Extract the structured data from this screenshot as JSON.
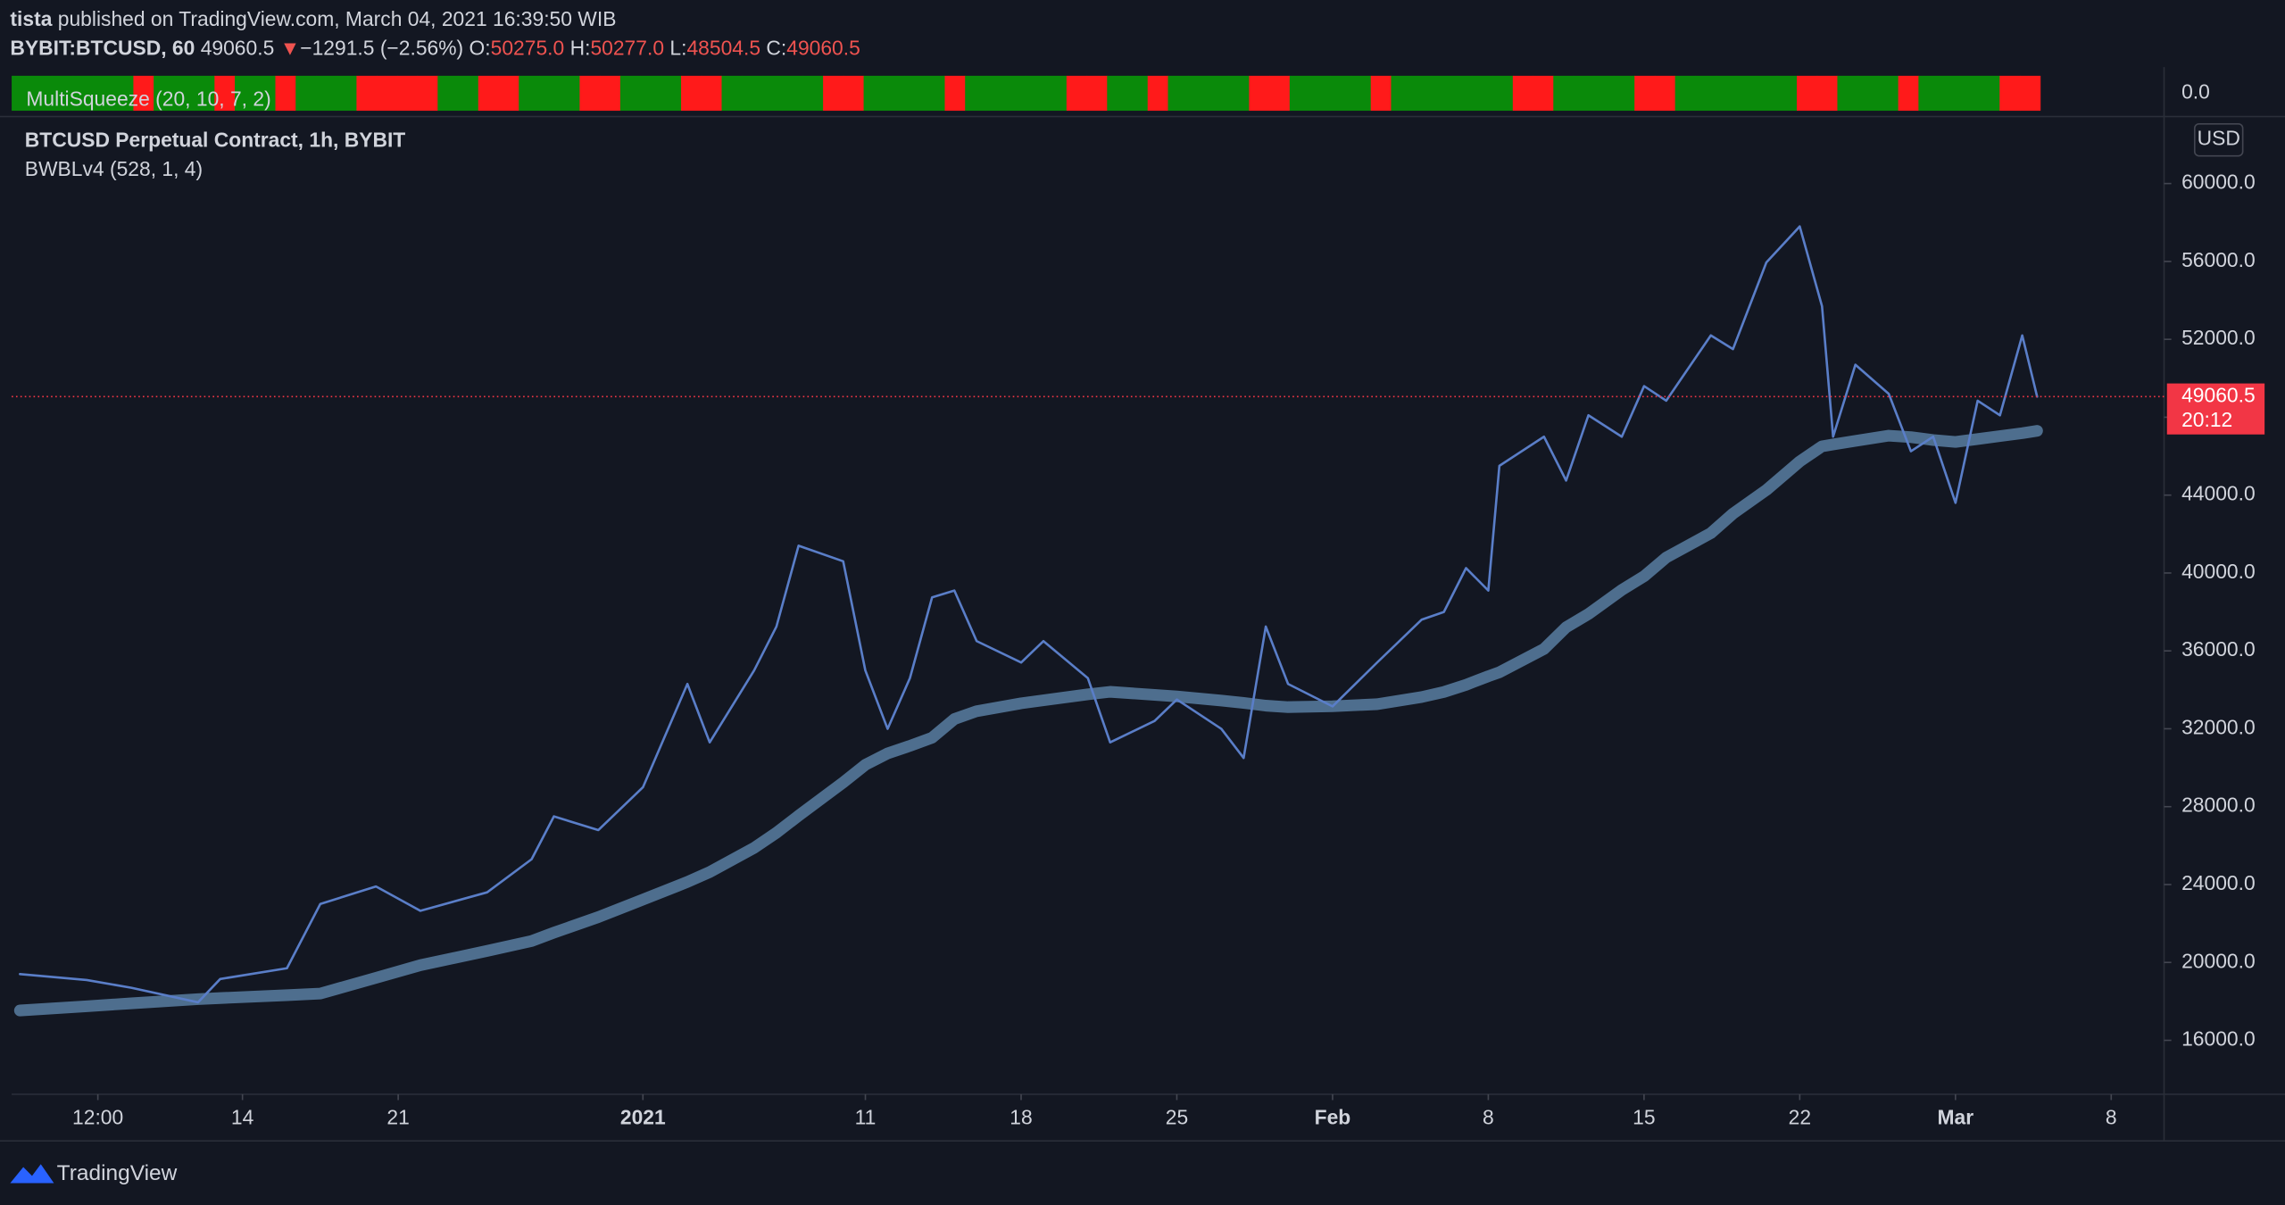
{
  "header": {
    "author": "tista",
    "published": "published on TradingView.com, March 04, 2021 16:39:50 WIB"
  },
  "legend": {
    "symbol": "BYBIT:BTCUSD, 60",
    "last": "49060.5",
    "arrow": "▼",
    "change": "−1291.5 (−2.56%)",
    "o_label": "O:",
    "o": "50275.0",
    "h_label": "H:",
    "h": "50277.0",
    "l_label": "L:",
    "l": "48504.5",
    "c_label": "C:",
    "c": "49060.5"
  },
  "indicator": {
    "name": "MultiSqueeze (20, 10, 7, 2)",
    "axis_label": "0.0",
    "on_color": "#ff1a1a",
    "off_color": "#0a8a0a",
    "squeeze_on": [
      0,
      0,
      0,
      0,
      0,
      0,
      1,
      0,
      0,
      0,
      1,
      0,
      0,
      1,
      0,
      0,
      0,
      1,
      1,
      1,
      1,
      0,
      0,
      1,
      1,
      0,
      0,
      0,
      1,
      1,
      0,
      0,
      0,
      1,
      1,
      0,
      0,
      0,
      0,
      0,
      1,
      1,
      0,
      0,
      0,
      0,
      1,
      0,
      0,
      0,
      0,
      0,
      1,
      1,
      0,
      0,
      1,
      0,
      0,
      0,
      0,
      1,
      1,
      0,
      0,
      0,
      0,
      1,
      0,
      0,
      0,
      0,
      0,
      0,
      1,
      1,
      0,
      0,
      0,
      0,
      1,
      1,
      0,
      0,
      0,
      0,
      0,
      0,
      1,
      1,
      0,
      0,
      0,
      1,
      0,
      0,
      0,
      0,
      1,
      1
    ]
  },
  "footer": {
    "brand": "TradingView"
  },
  "chart_data": {
    "type": "line",
    "title": "BTCUSD Perpetual Contract, 1h, BYBIT",
    "subtitle": "BWBLv4 (528, 1, 4)",
    "currency": "USD",
    "x": [
      "2020-12-04T00:00",
      "2020-12-07T00:00",
      "2020-12-09T00:00",
      "2020-12-12T00:00",
      "2020-12-13T00:00",
      "2020-12-16T00:00",
      "2020-12-17T12:00",
      "2020-12-20T00:00",
      "2020-12-22T00:00",
      "2020-12-25T00:00",
      "2020-12-27T00:00",
      "2020-12-28T00:00",
      "2020-12-30T00:00",
      "2021-01-01T00:00",
      "2021-01-03T00:00",
      "2021-01-04T00:00",
      "2021-01-06T00:00",
      "2021-01-07T00:00",
      "2021-01-08T00:00",
      "2021-01-10T00:00",
      "2021-01-11T00:00",
      "2021-01-12T00:00",
      "2021-01-13T00:00",
      "2021-01-14T00:00",
      "2021-01-15T00:00",
      "2021-01-16T00:00",
      "2021-01-18T00:00",
      "2021-01-19T00:00",
      "2021-01-21T00:00",
      "2021-01-22T00:00",
      "2021-01-24T00:00",
      "2021-01-25T00:00",
      "2021-01-27T00:00",
      "2021-01-28T00:00",
      "2021-01-29T00:00",
      "2021-01-30T00:00",
      "2021-02-01T00:00",
      "2021-02-03T00:00",
      "2021-02-05T00:00",
      "2021-02-06T00:00",
      "2021-02-07T00:00",
      "2021-02-08T00:00",
      "2021-02-08T12:00",
      "2021-02-10T12:00",
      "2021-02-11T12:00",
      "2021-02-12T12:00",
      "2021-02-14T00:00",
      "2021-02-15T00:00",
      "2021-02-16T00:00",
      "2021-02-18T00:00",
      "2021-02-19T00:00",
      "2021-02-20T12:00",
      "2021-02-22T00:00",
      "2021-02-23T00:00",
      "2021-02-23T12:00",
      "2021-02-24T12:00",
      "2021-02-26T00:00",
      "2021-02-27T00:00",
      "2021-02-28T00:00",
      "2021-03-01T00:00",
      "2021-03-02T00:00",
      "2021-03-03T00:00",
      "2021-03-04T00:00",
      "2021-03-04T16:00"
    ],
    "series": [
      {
        "name": "BTCUSD",
        "color": "#5a7ec8",
        "values": [
          19400,
          19100,
          18700,
          17950,
          19150,
          19700,
          23000,
          23900,
          22650,
          23600,
          25300,
          27500,
          26800,
          29000,
          34300,
          31300,
          35000,
          37250,
          41400,
          40600,
          35000,
          32000,
          34600,
          38750,
          39100,
          36500,
          35400,
          36500,
          34600,
          31300,
          32400,
          33500,
          32000,
          30500,
          37250,
          34300,
          33150,
          35400,
          37600,
          38000,
          40250,
          39100,
          45500,
          47000,
          44750,
          48100,
          47000,
          49600,
          48850,
          52200,
          51500,
          55950,
          57800,
          53700,
          47000,
          50700,
          49200,
          46250,
          47000,
          43600,
          48850,
          48100,
          52200,
          49060.5
        ]
      },
      {
        "name": "BWBLv4",
        "color": "#4e6e8e",
        "values": [
          17530,
          17750,
          17900,
          18120,
          18170,
          18320,
          18400,
          19210,
          19860,
          20590,
          21100,
          21530,
          22330,
          23230,
          24130,
          24640,
          25880,
          26660,
          27540,
          29240,
          30150,
          30730,
          31120,
          31540,
          32500,
          32900,
          33310,
          33460,
          33770,
          33900,
          33740,
          33660,
          33450,
          33330,
          33190,
          33110,
          33160,
          33260,
          33630,
          33890,
          34260,
          34700,
          34900,
          36100,
          37210,
          37890,
          39130,
          39830,
          40800,
          42050,
          43050,
          44260,
          45730,
          46510,
          46600,
          46780,
          47050,
          46980,
          46830,
          46730,
          46880,
          47030,
          47180,
          47300
        ]
      }
    ],
    "last_price": 49060.5,
    "last_price_color": "#f23645",
    "countdown": "20:12",
    "xlim": [
      "2020-12-03T15:00",
      "2021-03-10T09:00"
    ],
    "xticks": [
      {
        "value": "2020-12-07T12:00",
        "label": "12:00"
      },
      {
        "value": "2020-12-14T00:00",
        "label": "14"
      },
      {
        "value": "2020-12-21T00:00",
        "label": "21"
      },
      {
        "value": "2021-01-01T00:00",
        "label": "2021"
      },
      {
        "value": "2021-01-11T00:00",
        "label": "11"
      },
      {
        "value": "2021-01-18T00:00",
        "label": "18"
      },
      {
        "value": "2021-01-25T00:00",
        "label": "25"
      },
      {
        "value": "2021-02-01T00:00",
        "label": "Feb"
      },
      {
        "value": "2021-02-08T00:00",
        "label": "8"
      },
      {
        "value": "2021-02-15T00:00",
        "label": "15"
      },
      {
        "value": "2021-02-22T00:00",
        "label": "22"
      },
      {
        "value": "2021-03-01T00:00",
        "label": "Mar"
      },
      {
        "value": "2021-03-08T00:00",
        "label": "8"
      }
    ],
    "ylim": [
      13230,
      63440
    ],
    "yticks": [
      {
        "value": 16000,
        "label": "16000.0"
      },
      {
        "value": 20000,
        "label": "20000.0"
      },
      {
        "value": 24000,
        "label": "24000.0"
      },
      {
        "value": 28000,
        "label": "28000.0"
      },
      {
        "value": 32000,
        "label": "32000.0"
      },
      {
        "value": 36000,
        "label": "36000.0"
      },
      {
        "value": 40000,
        "label": "40000.0"
      },
      {
        "value": 44000,
        "label": "44000.0"
      },
      {
        "value": 48000,
        "label": "48000.0"
      },
      {
        "value": 52000,
        "label": "52000.0"
      },
      {
        "value": 56000,
        "label": "56000.0"
      },
      {
        "value": 60000,
        "label": "60000.0"
      }
    ],
    "grid": false
  }
}
